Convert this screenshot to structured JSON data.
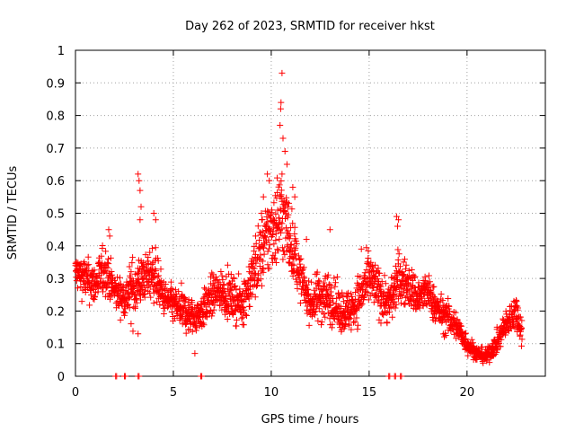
{
  "chart_data": {
    "type": "scatter",
    "title": "Day 262 of 2023, SRMTID for receiver hkst",
    "xlabel": "GPS time / hours",
    "ylabel": "SRMTID / TECUs",
    "xlim": [
      0,
      24
    ],
    "ylim": [
      0,
      1
    ],
    "xticks": [
      "0",
      "5",
      "10",
      "15",
      "20"
    ],
    "xtick_values": [
      0,
      5,
      10,
      15,
      20
    ],
    "yticks": [
      "0",
      "0.1",
      "0.2",
      "0.3",
      "0.4",
      "0.5",
      "0.6",
      "0.7",
      "0.8",
      "0.9",
      "1"
    ],
    "ytick_values": [
      0,
      0.1,
      0.2,
      0.3,
      0.4,
      0.5,
      0.6,
      0.7,
      0.8,
      0.9,
      1
    ],
    "grid": true,
    "marker": "+",
    "marker_color": "#ff0000",
    "series": [
      {
        "name": "SRMTID",
        "trend_x": [
          0,
          0.5,
          1,
          1.5,
          2,
          2.5,
          3,
          3.5,
          4,
          4.5,
          5,
          5.5,
          6,
          6.5,
          7,
          7.5,
          8,
          8.5,
          9,
          9.5,
          10,
          10.5,
          11,
          11.5,
          12,
          12.5,
          13,
          13.5,
          14,
          14.5,
          15,
          15.5,
          16,
          16.5,
          17,
          17.5,
          18,
          18.5,
          19,
          19.5,
          20,
          20.5,
          21,
          21.5,
          22,
          22.5,
          22.8
        ],
        "trend_y": [
          0.32,
          0.3,
          0.28,
          0.33,
          0.26,
          0.24,
          0.27,
          0.3,
          0.32,
          0.24,
          0.22,
          0.2,
          0.18,
          0.2,
          0.25,
          0.26,
          0.24,
          0.22,
          0.3,
          0.38,
          0.45,
          0.5,
          0.42,
          0.3,
          0.22,
          0.25,
          0.24,
          0.2,
          0.2,
          0.24,
          0.3,
          0.26,
          0.22,
          0.3,
          0.28,
          0.24,
          0.26,
          0.2,
          0.18,
          0.15,
          0.1,
          0.07,
          0.06,
          0.1,
          0.16,
          0.2,
          0.14
        ],
        "spread_y": [
          0.05,
          0.06,
          0.06,
          0.07,
          0.05,
          0.05,
          0.1,
          0.06,
          0.08,
          0.05,
          0.05,
          0.06,
          0.05,
          0.05,
          0.06,
          0.06,
          0.06,
          0.06,
          0.08,
          0.1,
          0.12,
          0.14,
          0.1,
          0.06,
          0.05,
          0.08,
          0.07,
          0.06,
          0.06,
          0.07,
          0.07,
          0.07,
          0.06,
          0.08,
          0.06,
          0.06,
          0.05,
          0.05,
          0.05,
          0.04,
          0.03,
          0.02,
          0.02,
          0.03,
          0.04,
          0.05,
          0.04
        ],
        "outliers": [
          {
            "x": 10.55,
            "y": 0.93
          },
          {
            "x": 10.5,
            "y": 0.84
          },
          {
            "x": 10.48,
            "y": 0.82
          },
          {
            "x": 10.45,
            "y": 0.77
          },
          {
            "x": 10.6,
            "y": 0.73
          },
          {
            "x": 10.7,
            "y": 0.69
          },
          {
            "x": 10.8,
            "y": 0.65
          },
          {
            "x": 10.55,
            "y": 0.62
          },
          {
            "x": 9.8,
            "y": 0.62
          },
          {
            "x": 9.9,
            "y": 0.6
          },
          {
            "x": 11.1,
            "y": 0.58
          },
          {
            "x": 11.2,
            "y": 0.55
          },
          {
            "x": 3.2,
            "y": 0.62
          },
          {
            "x": 3.25,
            "y": 0.6
          },
          {
            "x": 3.3,
            "y": 0.57
          },
          {
            "x": 3.35,
            "y": 0.52
          },
          {
            "x": 3.3,
            "y": 0.48
          },
          {
            "x": 3.2,
            "y": 0.13
          },
          {
            "x": 4.0,
            "y": 0.5
          },
          {
            "x": 4.1,
            "y": 0.48
          },
          {
            "x": 1.7,
            "y": 0.45
          },
          {
            "x": 1.75,
            "y": 0.43
          },
          {
            "x": 16.4,
            "y": 0.49
          },
          {
            "x": 16.5,
            "y": 0.48
          },
          {
            "x": 16.45,
            "y": 0.46
          },
          {
            "x": 14.6,
            "y": 0.39
          },
          {
            "x": 13.0,
            "y": 0.45
          },
          {
            "x": 6.1,
            "y": 0.07
          },
          {
            "x": 9.2,
            "y": 0.43
          },
          {
            "x": 9.5,
            "y": 0.5
          },
          {
            "x": 9.6,
            "y": 0.55
          },
          {
            "x": 11.8,
            "y": 0.42
          }
        ],
        "zero_points": [
          2.05,
          2.5,
          3.2,
          6.4,
          16.0,
          16.3,
          16.6
        ]
      }
    ]
  }
}
